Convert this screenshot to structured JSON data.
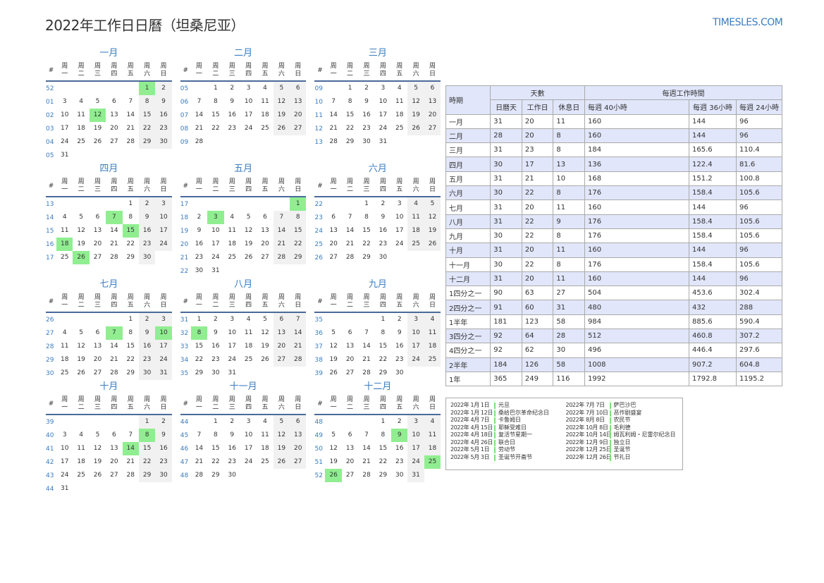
{
  "header": {
    "title": "2022年工作日日曆（坦桑尼亚）",
    "logo": "TIMESLES.COM"
  },
  "calendar": {
    "week_label": "#",
    "weekdays": [
      [
        "周",
        "一"
      ],
      [
        "周",
        "二"
      ],
      [
        "周",
        "三"
      ],
      [
        "周",
        "四"
      ],
      [
        "周",
        "五"
      ],
      [
        "周",
        "六"
      ],
      [
        "周",
        "日"
      ]
    ],
    "months": [
      {
        "name": "一月",
        "holidays": [
          1,
          12
        ],
        "rows": [
          [
            "52",
            "",
            "",
            "",
            "",
            "",
            "1",
            "2"
          ],
          [
            "01",
            "3",
            "4",
            "5",
            "6",
            "7",
            "8",
            "9"
          ],
          [
            "02",
            "10",
            "11",
            "12",
            "13",
            "14",
            "15",
            "16"
          ],
          [
            "03",
            "17",
            "18",
            "19",
            "20",
            "21",
            "22",
            "23"
          ],
          [
            "04",
            "24",
            "25",
            "26",
            "27",
            "28",
            "29",
            "30"
          ],
          [
            "05",
            "31",
            "",
            "",
            "",
            "",
            "",
            ""
          ]
        ]
      },
      {
        "name": "二月",
        "holidays": [],
        "rows": [
          [
            "05",
            "",
            "1",
            "2",
            "3",
            "4",
            "5",
            "6"
          ],
          [
            "06",
            "7",
            "8",
            "9",
            "10",
            "11",
            "12",
            "13"
          ],
          [
            "07",
            "14",
            "15",
            "16",
            "17",
            "18",
            "19",
            "20"
          ],
          [
            "08",
            "21",
            "22",
            "23",
            "24",
            "25",
            "26",
            "27"
          ],
          [
            "09",
            "28",
            "",
            "",
            "",
            "",
            "",
            ""
          ]
        ]
      },
      {
        "name": "三月",
        "holidays": [],
        "rows": [
          [
            "09",
            "",
            "1",
            "2",
            "3",
            "4",
            "5",
            "6"
          ],
          [
            "10",
            "7",
            "8",
            "9",
            "10",
            "11",
            "12",
            "13"
          ],
          [
            "11",
            "14",
            "15",
            "16",
            "17",
            "18",
            "19",
            "20"
          ],
          [
            "12",
            "21",
            "22",
            "23",
            "24",
            "25",
            "26",
            "27"
          ],
          [
            "13",
            "28",
            "29",
            "30",
            "31",
            "",
            "",
            ""
          ]
        ]
      },
      {
        "name": "四月",
        "holidays": [
          7,
          15,
          18,
          26
        ],
        "rows": [
          [
            "13",
            "",
            "",
            "",
            "",
            "1",
            "2",
            "3"
          ],
          [
            "14",
            "4",
            "5",
            "6",
            "7",
            "8",
            "9",
            "10"
          ],
          [
            "15",
            "11",
            "12",
            "13",
            "14",
            "15",
            "16",
            "17"
          ],
          [
            "16",
            "18",
            "19",
            "20",
            "21",
            "22",
            "23",
            "24"
          ],
          [
            "17",
            "25",
            "26",
            "27",
            "28",
            "29",
            "30",
            ""
          ]
        ]
      },
      {
        "name": "五月",
        "holidays": [
          1,
          3
        ],
        "rows": [
          [
            "17",
            "",
            "",
            "",
            "",
            "",
            "",
            "1"
          ],
          [
            "18",
            "2",
            "3",
            "4",
            "5",
            "6",
            "7",
            "8"
          ],
          [
            "19",
            "9",
            "10",
            "11",
            "12",
            "13",
            "14",
            "15"
          ],
          [
            "20",
            "16",
            "17",
            "18",
            "19",
            "20",
            "21",
            "22"
          ],
          [
            "21",
            "23",
            "24",
            "25",
            "26",
            "27",
            "28",
            "29"
          ],
          [
            "22",
            "30",
            "31",
            "",
            "",
            "",
            "",
            ""
          ]
        ]
      },
      {
        "name": "六月",
        "holidays": [],
        "rows": [
          [
            "22",
            "",
            "",
            "1",
            "2",
            "3",
            "4",
            "5"
          ],
          [
            "23",
            "6",
            "7",
            "8",
            "9",
            "10",
            "11",
            "12"
          ],
          [
            "24",
            "13",
            "14",
            "15",
            "16",
            "17",
            "18",
            "19"
          ],
          [
            "25",
            "20",
            "21",
            "22",
            "23",
            "24",
            "25",
            "26"
          ],
          [
            "26",
            "27",
            "28",
            "29",
            "30",
            "",
            "",
            ""
          ]
        ]
      },
      {
        "name": "七月",
        "holidays": [
          7,
          10
        ],
        "rows": [
          [
            "26",
            "",
            "",
            "",
            "",
            "1",
            "2",
            "3"
          ],
          [
            "27",
            "4",
            "5",
            "6",
            "7",
            "8",
            "9",
            "10"
          ],
          [
            "28",
            "11",
            "12",
            "13",
            "14",
            "15",
            "16",
            "17"
          ],
          [
            "29",
            "18",
            "19",
            "20",
            "21",
            "22",
            "23",
            "24"
          ],
          [
            "30",
            "25",
            "26",
            "27",
            "28",
            "29",
            "30",
            "31"
          ]
        ]
      },
      {
        "name": "八月",
        "holidays": [
          8
        ],
        "rows": [
          [
            "31",
            "1",
            "2",
            "3",
            "4",
            "5",
            "6",
            "7"
          ],
          [
            "32",
            "8",
            "9",
            "10",
            "11",
            "12",
            "13",
            "14"
          ],
          [
            "33",
            "15",
            "16",
            "17",
            "18",
            "19",
            "20",
            "21"
          ],
          [
            "34",
            "22",
            "23",
            "24",
            "25",
            "26",
            "27",
            "28"
          ],
          [
            "35",
            "29",
            "30",
            "31",
            "",
            "",
            "",
            ""
          ]
        ]
      },
      {
        "name": "九月",
        "holidays": [],
        "rows": [
          [
            "35",
            "",
            "",
            "",
            "1",
            "2",
            "3",
            "4"
          ],
          [
            "36",
            "5",
            "6",
            "7",
            "8",
            "9",
            "10",
            "11"
          ],
          [
            "37",
            "12",
            "13",
            "14",
            "15",
            "16",
            "17",
            "18"
          ],
          [
            "38",
            "19",
            "20",
            "21",
            "22",
            "23",
            "24",
            "25"
          ],
          [
            "39",
            "26",
            "27",
            "28",
            "29",
            "30",
            "",
            ""
          ]
        ]
      },
      {
        "name": "十月",
        "holidays": [
          8,
          14
        ],
        "rows": [
          [
            "39",
            "",
            "",
            "",
            "",
            "",
            "1",
            "2"
          ],
          [
            "40",
            "3",
            "4",
            "5",
            "6",
            "7",
            "8",
            "9"
          ],
          [
            "41",
            "10",
            "11",
            "12",
            "13",
            "14",
            "15",
            "16"
          ],
          [
            "42",
            "17",
            "18",
            "19",
            "20",
            "21",
            "22",
            "23"
          ],
          [
            "43",
            "24",
            "25",
            "26",
            "27",
            "28",
            "29",
            "30"
          ],
          [
            "44",
            "31",
            "",
            "",
            "",
            "",
            "",
            ""
          ]
        ]
      },
      {
        "name": "十一月",
        "holidays": [],
        "rows": [
          [
            "44",
            "",
            "1",
            "2",
            "3",
            "4",
            "5",
            "6"
          ],
          [
            "45",
            "7",
            "8",
            "9",
            "10",
            "11",
            "12",
            "13"
          ],
          [
            "46",
            "14",
            "15",
            "16",
            "17",
            "18",
            "19",
            "20"
          ],
          [
            "47",
            "21",
            "22",
            "23",
            "24",
            "25",
            "26",
            "27"
          ],
          [
            "48",
            "28",
            "29",
            "30",
            "",
            "",
            "",
            ""
          ]
        ]
      },
      {
        "name": "十二月",
        "holidays": [
          9,
          25,
          26
        ],
        "rows": [
          [
            "48",
            "",
            "",
            "",
            "1",
            "2",
            "3",
            "4"
          ],
          [
            "49",
            "5",
            "6",
            "7",
            "8",
            "9",
            "10",
            "11"
          ],
          [
            "50",
            "12",
            "13",
            "14",
            "15",
            "16",
            "17",
            "18"
          ],
          [
            "51",
            "19",
            "20",
            "21",
            "22",
            "23",
            "24",
            "25"
          ],
          [
            "52",
            "26",
            "27",
            "28",
            "29",
            "30",
            "31",
            ""
          ]
        ]
      }
    ]
  },
  "stats": {
    "headers": {
      "period": "時期",
      "days": "天數",
      "hours": "每週工作時間",
      "cal": "日曆天",
      "work": "工作日",
      "rest": "休息日",
      "h40": "每週 40小時",
      "h36": "每週 36小時",
      "h24": "每週 24小時"
    },
    "rows": [
      [
        "一月",
        "31",
        "20",
        "11",
        "160",
        "144",
        "96"
      ],
      [
        "二月",
        "28",
        "20",
        "8",
        "160",
        "144",
        "96"
      ],
      [
        "三月",
        "31",
        "23",
        "8",
        "184",
        "165.6",
        "110.4"
      ],
      [
        "四月",
        "30",
        "17",
        "13",
        "136",
        "122.4",
        "81.6"
      ],
      [
        "五月",
        "31",
        "21",
        "10",
        "168",
        "151.2",
        "100.8"
      ],
      [
        "六月",
        "30",
        "22",
        "8",
        "176",
        "158.4",
        "105.6"
      ],
      [
        "七月",
        "31",
        "20",
        "11",
        "160",
        "144",
        "96"
      ],
      [
        "八月",
        "31",
        "22",
        "9",
        "176",
        "158.4",
        "105.6"
      ],
      [
        "九月",
        "30",
        "22",
        "8",
        "176",
        "158.4",
        "105.6"
      ],
      [
        "十月",
        "31",
        "20",
        "11",
        "160",
        "144",
        "96"
      ],
      [
        "十一月",
        "30",
        "22",
        "8",
        "176",
        "158.4",
        "105.6"
      ],
      [
        "十二月",
        "31",
        "20",
        "11",
        "160",
        "144",
        "96"
      ],
      [
        "1四分之一",
        "90",
        "63",
        "27",
        "504",
        "453.6",
        "302.4"
      ],
      [
        "2四分之一",
        "91",
        "60",
        "31",
        "480",
        "432",
        "288"
      ],
      [
        "1半年",
        "181",
        "123",
        "58",
        "984",
        "885.6",
        "590.4"
      ],
      [
        "3四分之一",
        "92",
        "64",
        "28",
        "512",
        "460.8",
        "307.2"
      ],
      [
        "4四分之一",
        "92",
        "62",
        "30",
        "496",
        "446.4",
        "297.6"
      ],
      [
        "2半年",
        "184",
        "126",
        "58",
        "1008",
        "907.2",
        "604.8"
      ],
      [
        "1年",
        "365",
        "249",
        "116",
        "1992",
        "1792.8",
        "1195.2"
      ]
    ],
    "shaded_rows": [
      1,
      3,
      5,
      7,
      9,
      11,
      13,
      15,
      17
    ]
  },
  "holidays": [
    [
      {
        "date": "2022年 1月 1日",
        "name": "元旦"
      },
      {
        "date": "2022年 1月 12日",
        "name": "桑给巴尔革命纪念日"
      },
      {
        "date": "2022年 4月 7日",
        "name": "卡鲁姆日"
      },
      {
        "date": "2022年 4月 15日",
        "name": "耶稣受难日"
      },
      {
        "date": "2022年 4月 18日",
        "name": "复活节星期一"
      },
      {
        "date": "2022年 4月 26日",
        "name": "联合日"
      },
      {
        "date": "2022年 5月 1日",
        "name": "劳动节"
      },
      {
        "date": "2022年 5月 3日",
        "name": "圣诞节开斋节"
      }
    ],
    [
      {
        "date": "2022年 7月 7日",
        "name": "萨巴沙巴"
      },
      {
        "date": "2022年 7月 10日",
        "name": "恶作剧盛宴"
      },
      {
        "date": "2022年 8月 8日",
        "name": "农民节"
      },
      {
        "date": "2022年 10月 8日",
        "name": "毛利德"
      },
      {
        "date": "2022年 10月 14日",
        "name": "姆瓦利姆・尼雷尔纪念日"
      },
      {
        "date": "2022年 12月 9日",
        "name": "独立日"
      },
      {
        "date": "2022年 12月 25日",
        "name": "圣诞节"
      },
      {
        "date": "2022年 12月 26日",
        "name": "节礼日"
      }
    ]
  ],
  "colors": {
    "accent": "#3a7cc0",
    "holiday": "#90ee90",
    "weekend": "#f1f1f1",
    "table_shade": "#e1e6fa"
  }
}
